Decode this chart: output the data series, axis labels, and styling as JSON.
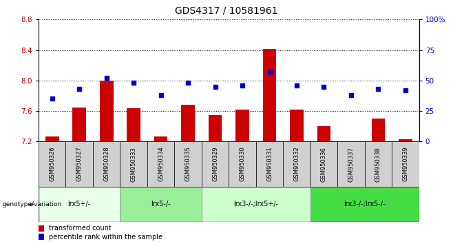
{
  "title": "GDS4317 / 10581961",
  "samples": [
    "GSM950326",
    "GSM950327",
    "GSM950328",
    "GSM950333",
    "GSM950334",
    "GSM950335",
    "GSM950329",
    "GSM950330",
    "GSM950331",
    "GSM950332",
    "GSM950336",
    "GSM950337",
    "GSM950338",
    "GSM950339"
  ],
  "transformed_count": [
    7.27,
    7.65,
    8.0,
    7.64,
    7.27,
    7.68,
    7.55,
    7.62,
    8.41,
    7.62,
    7.4,
    7.2,
    7.5,
    7.23
  ],
  "percentile_rank": [
    35,
    43,
    52,
    48,
    38,
    48,
    45,
    46,
    57,
    46,
    45,
    38,
    43,
    42
  ],
  "ylim_left": [
    7.2,
    8.8
  ],
  "ylim_right": [
    0,
    100
  ],
  "yticks_left": [
    7.2,
    7.6,
    8.0,
    8.4,
    8.8
  ],
  "yticks_right": [
    0,
    25,
    50,
    75,
    100
  ],
  "bar_color": "#cc0000",
  "dot_color": "#0000cc",
  "bar_width": 0.5,
  "groups": [
    {
      "label": "lrx5+/-",
      "start": 0,
      "end": 3,
      "color": "#e8ffe8"
    },
    {
      "label": "lrx5-/-",
      "start": 3,
      "end": 6,
      "color": "#99ee99"
    },
    {
      "label": "lrx3-/-;lrx5+/-",
      "start": 6,
      "end": 10,
      "color": "#ccffcc"
    },
    {
      "label": "lrx3-/-;lrx5-/-",
      "start": 10,
      "end": 14,
      "color": "#44dd44"
    }
  ],
  "legend_bar_label": "transformed count",
  "legend_dot_label": "percentile rank within the sample",
  "genotype_label": "genotype/variation",
  "right_axis_color": "#0000cc",
  "left_axis_color": "#cc0000",
  "dotted_line_color": "#000000",
  "header_row_color": "#d0d0d0",
  "title_fontsize": 10,
  "tick_fontsize": 7.5,
  "sample_fontsize": 6,
  "group_fontsize": 7,
  "legend_fontsize": 7
}
